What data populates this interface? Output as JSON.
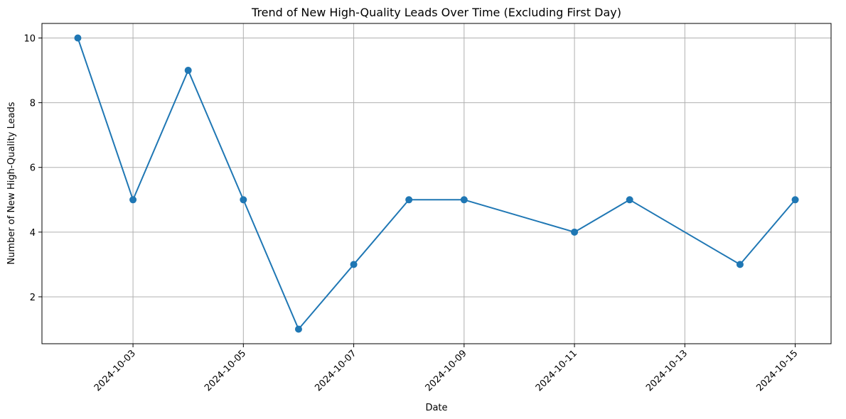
{
  "chart_data": {
    "type": "line",
    "title": "Trend of New High-Quality Leads Over Time (Excluding First Day)",
    "xlabel": "Date",
    "ylabel": "Number of New High-Quality Leads",
    "x": [
      "2024-10-02",
      "2024-10-03",
      "2024-10-04",
      "2024-10-05",
      "2024-10-06",
      "2024-10-07",
      "2024-10-08",
      "2024-10-09",
      "2024-10-11",
      "2024-10-12",
      "2024-10-14",
      "2024-10-15"
    ],
    "series": [
      {
        "values": [
          10,
          5,
          9,
          5,
          1,
          3,
          5,
          5,
          4,
          5,
          3,
          5
        ],
        "color": "#1f77b4",
        "marker": "circle"
      }
    ],
    "xlim": [
      "2024-10-01",
      "2024-10-16"
    ],
    "ylim": [
      0.55,
      10.45
    ],
    "xticks": [
      "2024-10-03",
      "2024-10-05",
      "2024-10-07",
      "2024-10-09",
      "2024-10-11",
      "2024-10-13",
      "2024-10-15"
    ],
    "yticks": [
      2,
      4,
      6,
      8,
      10
    ],
    "grid": true,
    "legend": "none"
  }
}
